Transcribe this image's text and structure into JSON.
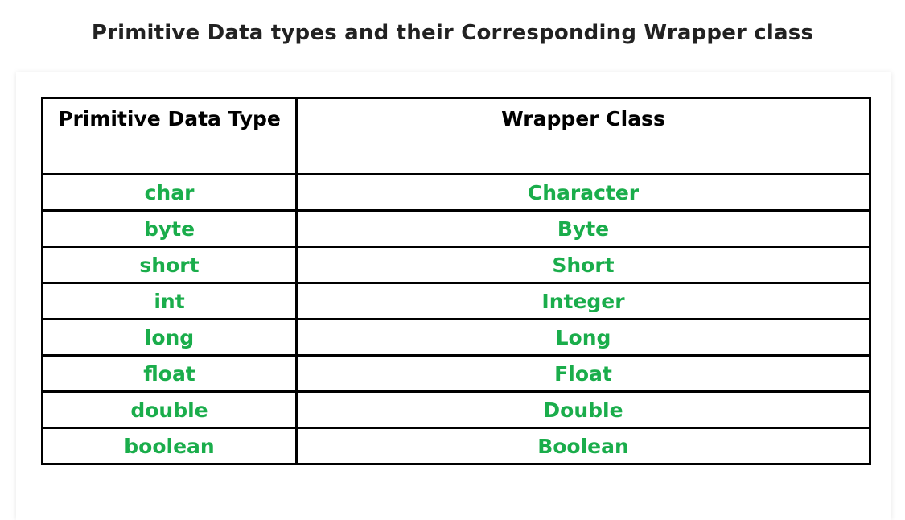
{
  "title": "Primitive Data types and their Corresponding Wrapper class",
  "colors": {
    "header_text": "#000000",
    "value_text": "#1aad4b",
    "border": "#000000"
  },
  "table": {
    "headers": [
      "Primitive Data Type",
      "Wrapper Class"
    ],
    "rows": [
      {
        "primitive": "char",
        "wrapper": "Character"
      },
      {
        "primitive": "byte",
        "wrapper": "Byte"
      },
      {
        "primitive": "short",
        "wrapper": "Short"
      },
      {
        "primitive": "int",
        "wrapper": "Integer"
      },
      {
        "primitive": "long",
        "wrapper": "Long"
      },
      {
        "primitive": "float",
        "wrapper": "Float"
      },
      {
        "primitive": "double",
        "wrapper": "Double"
      },
      {
        "primitive": "boolean",
        "wrapper": "Boolean"
      }
    ]
  }
}
